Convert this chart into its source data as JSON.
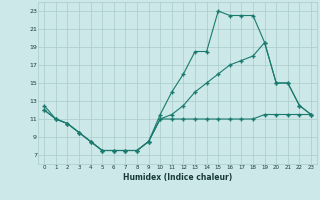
{
  "line_min_x": [
    0,
    1,
    2,
    3,
    4,
    5,
    6,
    7,
    8,
    9,
    10,
    11,
    12,
    13,
    14,
    15,
    16,
    17,
    18,
    19,
    20,
    21,
    22,
    23
  ],
  "line_min_y": [
    12.0,
    11.0,
    10.5,
    9.5,
    8.5,
    7.5,
    7.5,
    7.5,
    7.5,
    8.5,
    11.0,
    11.0,
    11.0,
    11.0,
    11.0,
    11.0,
    11.0,
    11.0,
    11.0,
    11.5,
    11.5,
    11.5,
    11.5,
    11.5
  ],
  "line_avg_x": [
    0,
    1,
    2,
    3,
    4,
    5,
    6,
    7,
    8,
    9,
    10,
    11,
    12,
    13,
    14,
    15,
    16,
    17,
    18,
    19,
    20,
    21,
    22,
    23
  ],
  "line_avg_y": [
    12.0,
    11.0,
    10.5,
    9.5,
    8.5,
    7.5,
    7.5,
    7.5,
    7.5,
    8.5,
    11.0,
    11.5,
    12.5,
    14.0,
    15.0,
    16.0,
    17.0,
    17.5,
    18.0,
    19.5,
    15.0,
    15.0,
    12.5,
    11.5
  ],
  "line_max_x": [
    0,
    1,
    2,
    3,
    4,
    5,
    6,
    7,
    8,
    9,
    10,
    11,
    12,
    13,
    14,
    15,
    16,
    17,
    18,
    19,
    20,
    21,
    22,
    23
  ],
  "line_max_y": [
    12.5,
    11.0,
    10.5,
    9.5,
    8.5,
    7.5,
    7.5,
    7.5,
    7.5,
    8.5,
    11.5,
    14.0,
    16.0,
    18.5,
    18.5,
    23.0,
    22.5,
    22.5,
    22.5,
    19.5,
    15.0,
    15.0,
    12.5,
    11.5
  ],
  "color": "#1a7a6e",
  "bg_color": "#cce8e8",
  "grid_color": "#aacccc",
  "xlabel": "Humidex (Indice chaleur)",
  "ylim": [
    6,
    24
  ],
  "xlim": [
    -0.5,
    23.5
  ],
  "yticks": [
    7,
    9,
    11,
    13,
    15,
    17,
    19,
    21,
    23
  ],
  "xticks": [
    0,
    1,
    2,
    3,
    4,
    5,
    6,
    7,
    8,
    9,
    10,
    11,
    12,
    13,
    14,
    15,
    16,
    17,
    18,
    19,
    20,
    21,
    22,
    23
  ]
}
